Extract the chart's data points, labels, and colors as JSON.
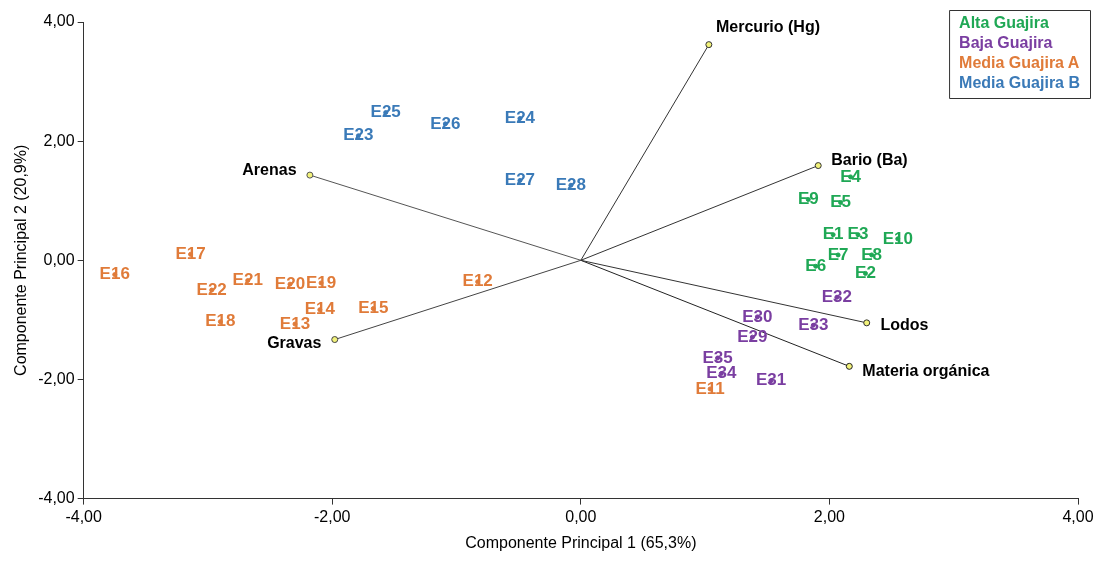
{
  "chart_data": {
    "type": "scatter",
    "xlabel": "Componente Principal 1 (65,3%)",
    "ylabel": "Componente Principal 2 (20,9%)",
    "xlim": [
      -4,
      4
    ],
    "xticks": [
      {
        "value": -4,
        "label": "-4,00"
      },
      {
        "value": -2,
        "label": "-2,00"
      },
      {
        "value": 0,
        "label": "0,00"
      },
      {
        "value": 2,
        "label": "2,00"
      },
      {
        "value": 4,
        "label": "4,00"
      }
    ],
    "ylim": [
      -4,
      4
    ],
    "yticks": [
      {
        "value": -4,
        "label": "-4,00"
      },
      {
        "value": -2,
        "label": "-2,00"
      },
      {
        "value": 0,
        "label": "0,00"
      },
      {
        "value": 2,
        "label": "2,00"
      },
      {
        "value": 4,
        "label": "4,00"
      }
    ],
    "grid": false,
    "legend": "top right",
    "marker": "circle",
    "series": [
      {
        "name": "Alta Guajira",
        "color": "#1fa855",
        "x": [
          2.17,
          1.83,
          2.09,
          2.03,
          2.23,
          2.55,
          2.07,
          2.34,
          1.89,
          2.29
        ],
        "values": [
          1.4,
          1.02,
          0.97,
          0.43,
          0.43,
          0.36,
          0.09,
          0.09,
          -0.1,
          -0.22
        ],
        "value_labels": [
          "E4",
          "E9",
          "E5",
          "E1",
          "E3",
          "E10",
          "E7",
          "E8",
          "E6",
          "E2"
        ]
      },
      {
        "name": "Baja Guajira",
        "color": "#7a3ea1",
        "x": [
          2.06,
          1.42,
          1.87,
          1.38,
          1.1,
          1.13,
          1.53
        ],
        "values": [
          -0.62,
          -0.95,
          -1.09,
          -1.29,
          -1.64,
          -1.9,
          -2.02
        ],
        "value_labels": [
          "E32",
          "E30",
          "E33",
          "E29",
          "E35",
          "E34",
          "E31"
        ]
      },
      {
        "name": "Media Guajira A",
        "color": "#e07b39",
        "x": [
          -3.14,
          -3.75,
          -2.97,
          -2.68,
          -2.34,
          -2.09,
          -2.1,
          -1.67,
          -2.9,
          -2.3,
          -0.83,
          1.04
        ],
        "values": [
          0.1,
          -0.24,
          -0.5,
          -0.34,
          -0.4,
          -0.38,
          -0.83,
          -0.81,
          -1.03,
          -1.07,
          -0.36,
          -2.16
        ],
        "value_labels": [
          "E17",
          "E16",
          "E22",
          "E21",
          "E20",
          "E19",
          "E14",
          "E15",
          "E18",
          "E13",
          "E12",
          "E11"
        ]
      },
      {
        "name": "Media Guajira B",
        "color": "#3a7ab8",
        "x": [
          -1.57,
          -1.79,
          -1.09,
          -0.49,
          -0.49,
          -0.08
        ],
        "values": [
          2.48,
          2.09,
          2.29,
          2.38,
          1.34,
          1.26
        ],
        "value_labels": [
          "E25",
          "E23",
          "E26",
          "E24",
          "E27",
          "E28"
        ]
      },
      {
        "type": "line",
        "name": "Mercurio (Hg)",
        "color": "#333333",
        "x": [
          0,
          1.03
        ],
        "values": [
          0,
          3.62
        ]
      },
      {
        "type": "line",
        "name": "Bario (Ba)",
        "color": "#333333",
        "x": [
          0,
          1.91
        ],
        "values": [
          0,
          1.59
        ]
      },
      {
        "type": "line",
        "name": "Lodos",
        "color": "#333333",
        "x": [
          0,
          2.3
        ],
        "values": [
          0,
          -1.05
        ]
      },
      {
        "type": "line",
        "name": "Materia orgánica",
        "color": "#222222",
        "x": [
          0,
          2.16
        ],
        "values": [
          0,
          -1.78
        ]
      },
      {
        "type": "line",
        "name": "Arenas",
        "color": "#555555",
        "x": [
          0,
          -2.18
        ],
        "values": [
          0,
          1.43
        ]
      },
      {
        "type": "line",
        "name": "Gravas",
        "color": "#444444",
        "x": [
          0,
          -1.98
        ],
        "values": [
          0,
          -1.33
        ]
      }
    ]
  }
}
